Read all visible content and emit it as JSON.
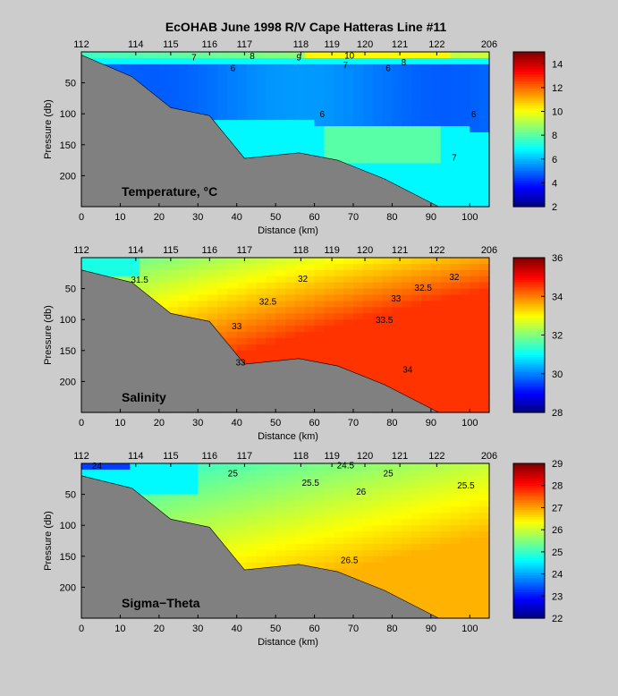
{
  "figure": {
    "title": "EcOHAB   June 1998   R/V Cape Hatteras   Line #11"
  },
  "chart_data": [
    {
      "type": "heatmap",
      "panel_label": "Temperature, °C",
      "xlabel": "Distance (km)",
      "ylabel": "Pressure (db)",
      "xlim": [
        0,
        105
      ],
      "ylim": [
        250,
        0
      ],
      "x_ticks": [
        0,
        10,
        20,
        30,
        40,
        50,
        60,
        70,
        80,
        90,
        100
      ],
      "y_ticks": [
        50,
        100,
        150,
        200
      ],
      "stations": [
        {
          "label": "112",
          "x": 0
        },
        {
          "label": "114",
          "x": 14
        },
        {
          "label": "115",
          "x": 23
        },
        {
          "label": "116",
          "x": 33
        },
        {
          "label": "117",
          "x": 42
        },
        {
          "label": "118",
          "x": 56.5
        },
        {
          "label": "119",
          "x": 64.5
        },
        {
          "label": "120",
          "x": 73
        },
        {
          "label": "121",
          "x": 82
        },
        {
          "label": "122",
          "x": 91.5
        },
        {
          "label": "206",
          "x": 105
        }
      ],
      "colorbar": {
        "min": 2,
        "max": 15,
        "ticks": [
          2,
          4,
          6,
          8,
          10,
          12,
          14
        ]
      },
      "bottom_profile": {
        "x": [
          0,
          13,
          23,
          33,
          42,
          56,
          66,
          78,
          92,
          105
        ],
        "y": [
          5,
          40,
          90,
          103,
          172,
          163,
          175,
          205,
          250,
          250
        ]
      },
      "contour_labels": [
        {
          "text": "7",
          "x": 29,
          "y": 8
        },
        {
          "text": "8",
          "x": 44,
          "y": 6
        },
        {
          "text": "9",
          "x": 56,
          "y": 8
        },
        {
          "text": "10",
          "x": 69,
          "y": 5
        },
        {
          "text": "7",
          "x": 68,
          "y": 20
        },
        {
          "text": "8",
          "x": 83,
          "y": 16
        },
        {
          "text": "6",
          "x": 39,
          "y": 25
        },
        {
          "text": "6",
          "x": 79,
          "y": 25
        },
        {
          "text": "6",
          "x": 62,
          "y": 100
        },
        {
          "text": "6",
          "x": 101,
          "y": 100
        },
        {
          "text": "7",
          "x": 96,
          "y": 170
        }
      ]
    },
    {
      "type": "heatmap",
      "panel_label": "Salinity",
      "xlabel": "Distance (km)",
      "ylabel": "Pressure (db)",
      "xlim": [
        0,
        105
      ],
      "ylim": [
        250,
        0
      ],
      "x_ticks": [
        0,
        10,
        20,
        30,
        40,
        50,
        60,
        70,
        80,
        90,
        100
      ],
      "y_ticks": [
        50,
        100,
        150,
        200
      ],
      "stations": [
        {
          "label": "112",
          "x": 0
        },
        {
          "label": "114",
          "x": 14
        },
        {
          "label": "115",
          "x": 23
        },
        {
          "label": "116",
          "x": 33
        },
        {
          "label": "117",
          "x": 42
        },
        {
          "label": "118",
          "x": 56.5
        },
        {
          "label": "119",
          "x": 64.5
        },
        {
          "label": "120",
          "x": 73
        },
        {
          "label": "121",
          "x": 82
        },
        {
          "label": "122",
          "x": 91.5
        },
        {
          "label": "206",
          "x": 105
        }
      ],
      "colorbar": {
        "min": 28,
        "max": 36,
        "ticks": [
          28,
          30,
          32,
          34,
          36
        ]
      },
      "bottom_profile": {
        "x": [
          0,
          13,
          23,
          33,
          42,
          56,
          66,
          78,
          92,
          105
        ],
        "y": [
          20,
          40,
          90,
          103,
          172,
          163,
          175,
          205,
          250,
          250
        ]
      },
      "contour_labels": [
        {
          "text": "31.5",
          "x": 15,
          "y": 35
        },
        {
          "text": "32",
          "x": 57,
          "y": 33
        },
        {
          "text": "32",
          "x": 96,
          "y": 30
        },
        {
          "text": "32.5",
          "x": 48,
          "y": 70
        },
        {
          "text": "32.5",
          "x": 88,
          "y": 48
        },
        {
          "text": "33",
          "x": 40,
          "y": 110
        },
        {
          "text": "33",
          "x": 81,
          "y": 65
        },
        {
          "text": "33.5",
          "x": 78,
          "y": 100
        },
        {
          "text": "33",
          "x": 41,
          "y": 168
        },
        {
          "text": "34",
          "x": 84,
          "y": 180
        }
      ]
    },
    {
      "type": "heatmap",
      "panel_label": "Sigma−Theta",
      "xlabel": "Distance (km)",
      "ylabel": "Pressure (db)",
      "xlim": [
        0,
        105
      ],
      "ylim": [
        250,
        0
      ],
      "x_ticks": [
        0,
        10,
        20,
        30,
        40,
        50,
        60,
        70,
        80,
        90,
        100
      ],
      "y_ticks": [
        50,
        100,
        150,
        200
      ],
      "stations": [
        {
          "label": "112",
          "x": 0
        },
        {
          "label": "114",
          "x": 14
        },
        {
          "label": "115",
          "x": 23
        },
        {
          "label": "116",
          "x": 33
        },
        {
          "label": "117",
          "x": 42
        },
        {
          "label": "118",
          "x": 56.5
        },
        {
          "label": "119",
          "x": 64.5
        },
        {
          "label": "120",
          "x": 73
        },
        {
          "label": "121",
          "x": 82
        },
        {
          "label": "122",
          "x": 91.5
        },
        {
          "label": "206",
          "x": 105
        }
      ],
      "colorbar": {
        "min": 22,
        "max": 29,
        "ticks": [
          22,
          23,
          24,
          25,
          26,
          27,
          28,
          29
        ]
      },
      "bottom_profile": {
        "x": [
          0,
          13,
          23,
          33,
          42,
          56,
          66,
          78,
          92,
          105
        ],
        "y": [
          20,
          40,
          90,
          103,
          172,
          163,
          175,
          205,
          250,
          250
        ]
      },
      "contour_labels": [
        {
          "text": "24",
          "x": 4,
          "y": 3
        },
        {
          "text": "25",
          "x": 39,
          "y": 15
        },
        {
          "text": "24.5",
          "x": 68,
          "y": 2
        },
        {
          "text": "25",
          "x": 79,
          "y": 15
        },
        {
          "text": "25.5",
          "x": 59,
          "y": 30
        },
        {
          "text": "25.5",
          "x": 99,
          "y": 35
        },
        {
          "text": "26",
          "x": 72,
          "y": 45
        },
        {
          "text": "26.5",
          "x": 69,
          "y": 155
        }
      ]
    }
  ]
}
